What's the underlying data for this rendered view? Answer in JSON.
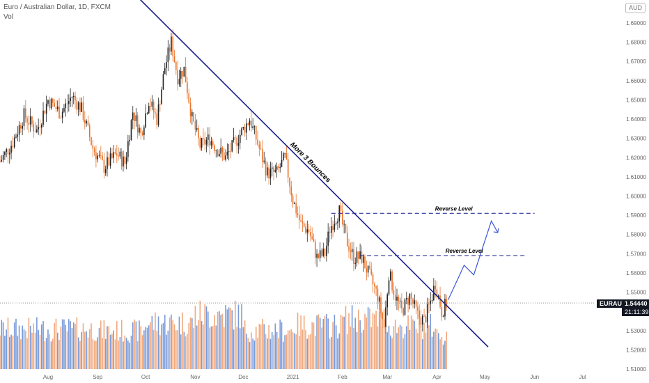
{
  "header": {
    "title": "Euro / Australian Dollar, 1D, FXCM",
    "volume_label": "Vol",
    "currency": "AUD"
  },
  "price_tag": {
    "symbol": "EURAUD",
    "price": "1.54440",
    "countdown": "21:11:39"
  },
  "annotations": {
    "trendline_label": "More 3 Bounces",
    "reverse_level_upper": "Reverse Level",
    "reverse_level_lower": "Reverse Level"
  },
  "colors": {
    "up": "#6b8fd4",
    "down": "#f0a070",
    "candle_up": "#222222",
    "candle_down": "#e8742c",
    "trendline": "#1a1f8a",
    "level": "#2b2f9e"
  },
  "chart_data": {
    "type": "candlestick",
    "y_axis": {
      "side": "right",
      "range": [
        1.505,
        1.703
      ],
      "ticks": [
        "1.69000",
        "1.68000",
        "1.67000",
        "1.66000",
        "1.65000",
        "1.64000",
        "1.63000",
        "1.62000",
        "1.61000",
        "1.60000",
        "1.59000",
        "1.58000",
        "1.57000",
        "1.56000",
        "1.55000",
        "1.54000",
        "1.53000",
        "1.52000",
        "1.51000"
      ]
    },
    "x_axis": {
      "ticks": [
        {
          "label": "Aug",
          "day": 37
        },
        {
          "label": "Sep",
          "day": 68
        },
        {
          "label": "Oct",
          "day": 98
        },
        {
          "label": "Nov",
          "day": 129
        },
        {
          "label": "Dec",
          "day": 159
        },
        {
          "label": "2021",
          "day": 190
        },
        {
          "label": "Feb",
          "day": 221
        },
        {
          "label": "Mar",
          "day": 249
        },
        {
          "label": "Apr",
          "day": 280
        },
        {
          "label": "May",
          "day": 310
        },
        {
          "label": "Jun",
          "day": 341
        },
        {
          "label": "Jul",
          "day": 371
        }
      ]
    },
    "day_range": [
      7,
      379
    ],
    "close_series": [
      [
        7,
        1.618
      ],
      [
        15,
        1.628
      ],
      [
        22,
        1.642
      ],
      [
        30,
        1.634
      ],
      [
        37,
        1.65
      ],
      [
        45,
        1.643
      ],
      [
        52,
        1.652
      ],
      [
        58,
        1.645
      ],
      [
        65,
        1.625
      ],
      [
        72,
        1.615
      ],
      [
        80,
        1.622
      ],
      [
        85,
        1.617
      ],
      [
        90,
        1.644
      ],
      [
        95,
        1.632
      ],
      [
        100,
        1.65
      ],
      [
        105,
        1.64
      ],
      [
        110,
        1.667
      ],
      [
        114,
        1.68
      ],
      [
        118,
        1.662
      ],
      [
        122,
        1.666
      ],
      [
        127,
        1.64
      ],
      [
        132,
        1.626
      ],
      [
        138,
        1.63
      ],
      [
        142,
        1.625
      ],
      [
        148,
        1.62
      ],
      [
        154,
        1.628
      ],
      [
        160,
        1.636
      ],
      [
        163,
        1.64
      ],
      [
        167,
        1.63
      ],
      [
        170,
        1.622
      ],
      [
        174,
        1.612
      ],
      [
        180,
        1.612
      ],
      [
        185,
        1.62
      ],
      [
        190,
        1.598
      ],
      [
        195,
        1.585
      ],
      [
        200,
        1.582
      ],
      [
        205,
        1.568
      ],
      [
        210,
        1.57
      ],
      [
        213,
        1.583
      ],
      [
        216,
        1.588
      ],
      [
        219,
        1.592
      ],
      [
        223,
        1.578
      ],
      [
        228,
        1.568
      ],
      [
        233,
        1.568
      ],
      [
        238,
        1.558
      ],
      [
        243,
        1.548
      ],
      [
        247,
        1.532
      ],
      [
        250,
        1.56
      ],
      [
        254,
        1.548
      ],
      [
        258,
        1.54
      ],
      [
        263,
        1.548
      ],
      [
        268,
        1.538
      ],
      [
        272,
        1.535
      ],
      [
        276,
        1.545
      ],
      [
        279,
        1.555
      ],
      [
        283,
        1.54
      ],
      [
        286,
        1.544
      ]
    ],
    "last_price": 1.5444,
    "trendline": {
      "start": [
        93,
        1.7035
      ],
      "end": [
        312,
        1.5215
      ]
    },
    "reverse_levels": [
      {
        "price": 1.591,
        "from_day": 214,
        "to_day": 341
      },
      {
        "price": 1.569,
        "from_day": 232,
        "to_day": 336
      }
    ],
    "projection": [
      [
        287,
        1.546
      ],
      [
        297,
        1.564
      ],
      [
        303,
        1.559
      ],
      [
        314,
        1.587
      ],
      [
        318,
        1.581
      ]
    ],
    "volume": [
      [
        "Aug",
        44
      ],
      [
        "Sep",
        42
      ],
      [
        "Oct",
        51
      ],
      [
        "Nov",
        60
      ],
      [
        "Dec",
        43
      ],
      [
        "2021",
        48
      ],
      [
        "Feb",
        55
      ],
      [
        "Mar",
        47
      ],
      [
        "Apr",
        38
      ]
    ]
  }
}
